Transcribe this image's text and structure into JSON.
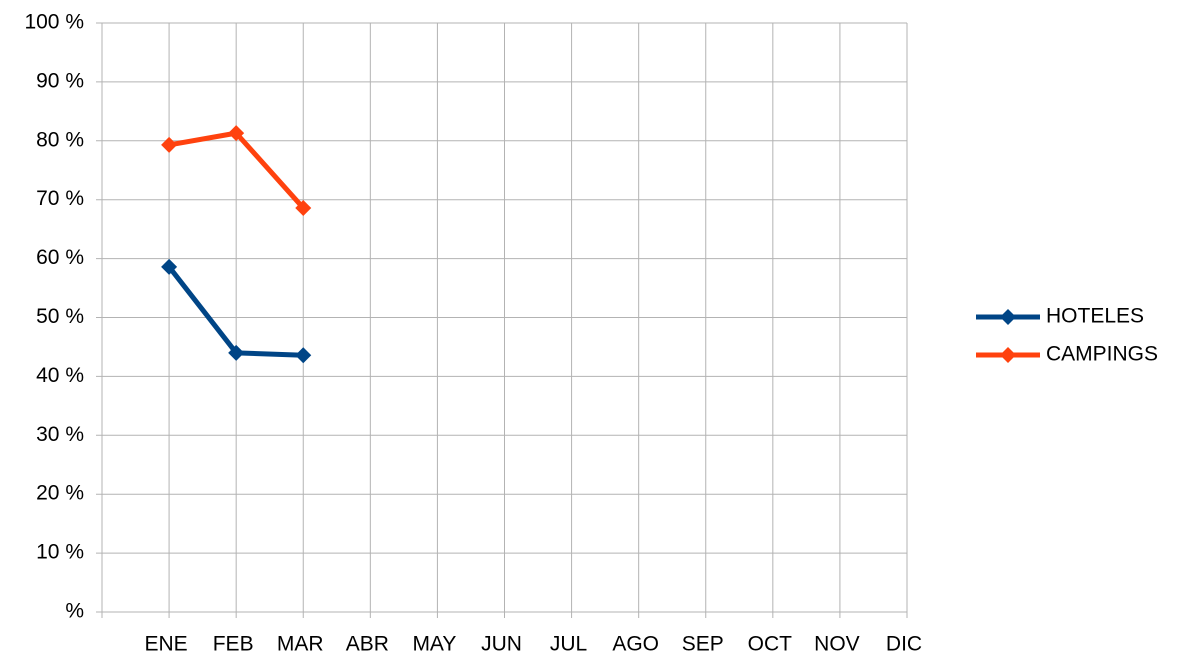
{
  "chart_data": {
    "type": "line",
    "categories": [
      "ENE",
      "FEB",
      "MAR",
      "ABR",
      "MAY",
      "JUN",
      "JUL",
      "AGO",
      "SEP",
      "OCT",
      "NOV",
      "DIC"
    ],
    "series": [
      {
        "name": "HOTELES",
        "color": "#004586",
        "values": [
          58.6,
          44.0,
          43.6,
          null,
          null,
          null,
          null,
          null,
          null,
          null,
          null,
          null
        ]
      },
      {
        "name": "CAMPINGS",
        "color": "#ff420e",
        "values": [
          79.3,
          81.3,
          68.6,
          null,
          null,
          null,
          null,
          null,
          null,
          null,
          null,
          null
        ]
      }
    ],
    "ylim": [
      0,
      100
    ],
    "yticks": [
      {
        "value": 0,
        "label": "%"
      },
      {
        "value": 10,
        "label": "10 %"
      },
      {
        "value": 20,
        "label": "20 %"
      },
      {
        "value": 30,
        "label": "30 %"
      },
      {
        "value": 40,
        "label": "40 %"
      },
      {
        "value": 50,
        "label": "50 %"
      },
      {
        "value": 60,
        "label": "60 %"
      },
      {
        "value": 70,
        "label": "70 %"
      },
      {
        "value": 80,
        "label": "80 %"
      },
      {
        "value": 90,
        "label": "90 %"
      },
      {
        "value": 100,
        "label": "100 %"
      }
    ],
    "grid": true,
    "legend": "right"
  }
}
